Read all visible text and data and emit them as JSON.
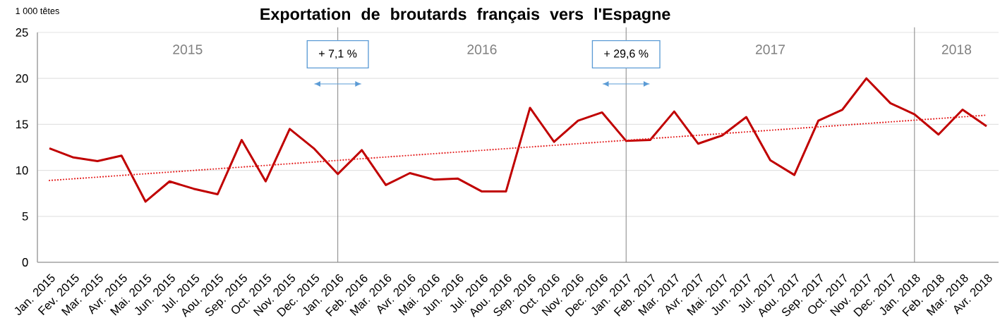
{
  "chart_data": {
    "type": "line",
    "title": "Exportation de broutards français vers l'Espagne",
    "ylabel": "1 000 têtes",
    "categories": [
      "Jan. 2015",
      "Fev. 2015",
      "Mar. 2015",
      "Avr. 2015",
      "Mai. 2015",
      "Jun. 2015",
      "Jul. 2015",
      "Aou. 2015",
      "Sep. 2015",
      "Oct. 2015",
      "Nov. 2015",
      "Dec. 2015",
      "Jan. 2016",
      "Feb. 2016",
      "Mar. 2016",
      "Avr. 2016",
      "Mai. 2016",
      "Jun. 2016",
      "Jul. 2016",
      "Aou. 2016",
      "Sep. 2016",
      "Oct. 2016",
      "Nov. 2016",
      "Dec. 2016",
      "Jan. 2017",
      "Feb. 2017",
      "Mar. 2017",
      "Avr. 2017",
      "Mai. 2017",
      "Jun. 2017",
      "Jul. 2017",
      "Aou. 2017",
      "Sep. 2017",
      "Oct. 2017",
      "Nov. 2017",
      "Dec. 2017",
      "Jan. 2018",
      "Feb. 2018",
      "Mar. 2018",
      "Avr. 2018"
    ],
    "series": [
      {
        "color": "#c00000",
        "values": [
          12.4,
          11.4,
          11.0,
          11.6,
          6.6,
          8.8,
          8.0,
          7.4,
          13.3,
          8.8,
          14.5,
          12.4,
          9.6,
          12.2,
          8.4,
          9.7,
          9.0,
          9.1,
          7.7,
          7.7,
          16.8,
          13.1,
          15.4,
          16.3,
          13.2,
          13.3,
          16.4,
          12.9,
          13.8,
          15.8,
          11.1,
          9.5,
          15.4,
          16.6,
          20.0,
          17.3,
          16.1,
          13.9,
          16.6,
          14.8
        ]
      },
      {
        "type": "line",
        "color": "#e41f1f",
        "line_style": "dotted",
        "x": [
          "Jan. 2015",
          "Avr. 2018"
        ],
        "values": [
          8.9,
          16.0
        ]
      }
    ],
    "ylim": [
      0,
      25
    ],
    "yticks": [
      0,
      5,
      10,
      15,
      20,
      25
    ],
    "grid": "y",
    "ref_lines": [
      {
        "axis": "x",
        "value": "Jan. 2016",
        "label": "+ 7,1 %",
        "color": "#8c8c8c"
      },
      {
        "axis": "x",
        "value": "Jan. 2017",
        "label": "+ 29,6 %",
        "color": "#8c8c8c"
      },
      {
        "axis": "x",
        "value": "Jan. 2018",
        "color": "#8c8c8c"
      }
    ],
    "annotations": [
      "2015",
      "2016",
      "2017",
      "2018"
    ]
  }
}
